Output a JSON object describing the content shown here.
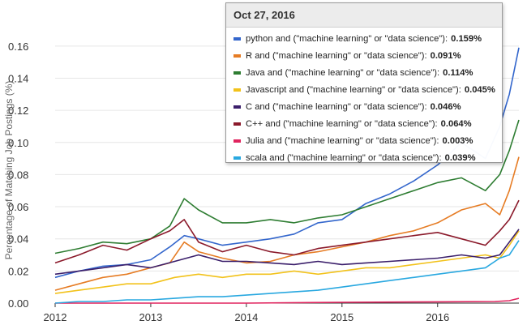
{
  "chart_data": {
    "type": "line",
    "title": "",
    "xlabel": "",
    "ylabel": "Percentage of Matching Job Postings (%)",
    "ylim": [
      0,
      0.17
    ],
    "xlim": [
      2012.0,
      2016.85
    ],
    "y_ticks": [
      "0.00",
      "0.02",
      "0.04",
      "0.06",
      "0.08",
      "0.10",
      "0.12",
      "0.14",
      "0.16"
    ],
    "x_ticks": [
      "2012",
      "2013",
      "2014",
      "2015",
      "2016"
    ],
    "grid": true,
    "series": [
      {
        "name": "python and (\"machine learning\" or \"data science\")",
        "color": "#3366cc",
        "x": [
          2012.0,
          2012.25,
          2012.5,
          2012.75,
          2013.0,
          2013.2,
          2013.35,
          2013.5,
          2013.75,
          2014.0,
          2014.25,
          2014.5,
          2014.75,
          2015.0,
          2015.25,
          2015.5,
          2015.75,
          2016.0,
          2016.25,
          2016.5,
          2016.65,
          2016.75,
          2016.85
        ],
        "y": [
          0.016,
          0.02,
          0.023,
          0.024,
          0.027,
          0.035,
          0.042,
          0.04,
          0.036,
          0.038,
          0.04,
          0.043,
          0.05,
          0.052,
          0.062,
          0.068,
          0.076,
          0.086,
          0.1,
          0.09,
          0.11,
          0.13,
          0.159
        ]
      },
      {
        "name": "R and (\"machine learning\" or \"data science\")",
        "color": "#e67c24",
        "x": [
          2012.0,
          2012.25,
          2012.5,
          2012.75,
          2013.0,
          2013.2,
          2013.35,
          2013.5,
          2013.75,
          2014.0,
          2014.25,
          2014.5,
          2014.75,
          2015.0,
          2015.25,
          2015.5,
          2015.75,
          2016.0,
          2016.25,
          2016.5,
          2016.65,
          2016.75,
          2016.85
        ],
        "y": [
          0.008,
          0.012,
          0.016,
          0.018,
          0.022,
          0.025,
          0.038,
          0.032,
          0.028,
          0.025,
          0.026,
          0.03,
          0.032,
          0.035,
          0.038,
          0.042,
          0.045,
          0.05,
          0.058,
          0.062,
          0.055,
          0.07,
          0.091
        ]
      },
      {
        "name": "Java and (\"machine learning\" or \"data science\")",
        "color": "#2e7d32",
        "x": [
          2012.0,
          2012.25,
          2012.5,
          2012.75,
          2013.0,
          2013.2,
          2013.35,
          2013.5,
          2013.75,
          2014.0,
          2014.25,
          2014.5,
          2014.75,
          2015.0,
          2015.25,
          2015.5,
          2015.75,
          2016.0,
          2016.25,
          2016.5,
          2016.65,
          2016.75,
          2016.85
        ],
        "y": [
          0.031,
          0.034,
          0.038,
          0.037,
          0.04,
          0.048,
          0.065,
          0.058,
          0.05,
          0.05,
          0.052,
          0.05,
          0.053,
          0.055,
          0.06,
          0.065,
          0.07,
          0.075,
          0.078,
          0.07,
          0.08,
          0.095,
          0.114
        ]
      },
      {
        "name": "Javascript and (\"machine learning\" or \"data science\")",
        "color": "#f2c21b",
        "x": [
          2012.0,
          2012.25,
          2012.5,
          2012.75,
          2013.0,
          2013.25,
          2013.5,
          2013.75,
          2014.0,
          2014.25,
          2014.5,
          2014.75,
          2015.0,
          2015.25,
          2015.5,
          2015.75,
          2016.0,
          2016.25,
          2016.5,
          2016.65,
          2016.75,
          2016.85
        ],
        "y": [
          0.006,
          0.008,
          0.01,
          0.012,
          0.012,
          0.016,
          0.018,
          0.016,
          0.018,
          0.018,
          0.02,
          0.018,
          0.02,
          0.022,
          0.022,
          0.024,
          0.026,
          0.028,
          0.03,
          0.028,
          0.036,
          0.045
        ]
      },
      {
        "name": "C and (\"machine learning\" or \"data science\")",
        "color": "#3b1f6b",
        "x": [
          2012.0,
          2012.25,
          2012.5,
          2012.75,
          2013.0,
          2013.25,
          2013.5,
          2013.75,
          2014.0,
          2014.25,
          2014.5,
          2014.75,
          2015.0,
          2015.25,
          2015.5,
          2015.75,
          2016.0,
          2016.25,
          2016.5,
          2016.65,
          2016.75,
          2016.85
        ],
        "y": [
          0.018,
          0.02,
          0.022,
          0.024,
          0.022,
          0.026,
          0.03,
          0.026,
          0.026,
          0.025,
          0.024,
          0.026,
          0.024,
          0.025,
          0.026,
          0.027,
          0.028,
          0.03,
          0.028,
          0.03,
          0.038,
          0.046
        ]
      },
      {
        "name": "C++ and (\"machine learning\" or \"data science\")",
        "color": "#8b1a2b",
        "x": [
          2012.0,
          2012.25,
          2012.5,
          2012.75,
          2013.0,
          2013.2,
          2013.35,
          2013.5,
          2013.75,
          2014.0,
          2014.25,
          2014.5,
          2014.75,
          2015.0,
          2015.25,
          2015.5,
          2015.75,
          2016.0,
          2016.25,
          2016.5,
          2016.65,
          2016.75,
          2016.85
        ],
        "y": [
          0.025,
          0.03,
          0.036,
          0.033,
          0.04,
          0.045,
          0.052,
          0.038,
          0.032,
          0.036,
          0.032,
          0.03,
          0.034,
          0.036,
          0.038,
          0.04,
          0.042,
          0.044,
          0.04,
          0.036,
          0.045,
          0.052,
          0.064
        ]
      },
      {
        "name": "Julia and (\"machine learning\" or \"data science\")",
        "color": "#e0245e",
        "x": [
          2012.0,
          2013.0,
          2014.0,
          2015.0,
          2016.0,
          2016.6,
          2016.75,
          2016.85
        ],
        "y": [
          0.0,
          0.0,
          0.0,
          0.0005,
          0.0008,
          0.001,
          0.0015,
          0.003
        ]
      },
      {
        "name": "scala and (\"machine learning\" or \"data science\")",
        "color": "#29a8e0",
        "x": [
          2012.0,
          2012.25,
          2012.5,
          2012.75,
          2013.0,
          2013.25,
          2013.5,
          2013.75,
          2014.0,
          2014.25,
          2014.5,
          2014.75,
          2015.0,
          2015.25,
          2015.5,
          2015.75,
          2016.0,
          2016.25,
          2016.5,
          2016.65,
          2016.75,
          2016.85
        ],
        "y": [
          0.0,
          0.001,
          0.001,
          0.002,
          0.002,
          0.003,
          0.004,
          0.004,
          0.005,
          0.006,
          0.007,
          0.008,
          0.01,
          0.012,
          0.014,
          0.016,
          0.018,
          0.02,
          0.022,
          0.028,
          0.03,
          0.039
        ]
      }
    ]
  },
  "tooltip": {
    "date": "Oct 27, 2016",
    "rows": [
      {
        "label": "python and (\"machine learning\" or \"data science\"):",
        "value": "0.159%",
        "color": "#3366cc"
      },
      {
        "label": "R and (\"machine learning\" or \"data science\"):",
        "value": "0.091%",
        "color": "#e67c24"
      },
      {
        "label": "Java and (\"machine learning\" or \"data science\"):",
        "value": "0.114%",
        "color": "#2e7d32"
      },
      {
        "label": "Javascript and (\"machine learning\" or \"data science\"):",
        "value": "0.045%",
        "color": "#f2c21b"
      },
      {
        "label": "C and (\"machine learning\" or \"data science\"):",
        "value": "0.046%",
        "color": "#3b1f6b"
      },
      {
        "label": "C++ and (\"machine learning\" or \"data science\"):",
        "value": "0.064%",
        "color": "#8b1a2b"
      },
      {
        "label": "Julia and (\"machine learning\" or \"data science\"):",
        "value": "0.003%",
        "color": "#e0245e"
      },
      {
        "label": "scala and (\"machine learning\" or \"data science\"):",
        "value": "0.039%",
        "color": "#29a8e0"
      }
    ]
  }
}
